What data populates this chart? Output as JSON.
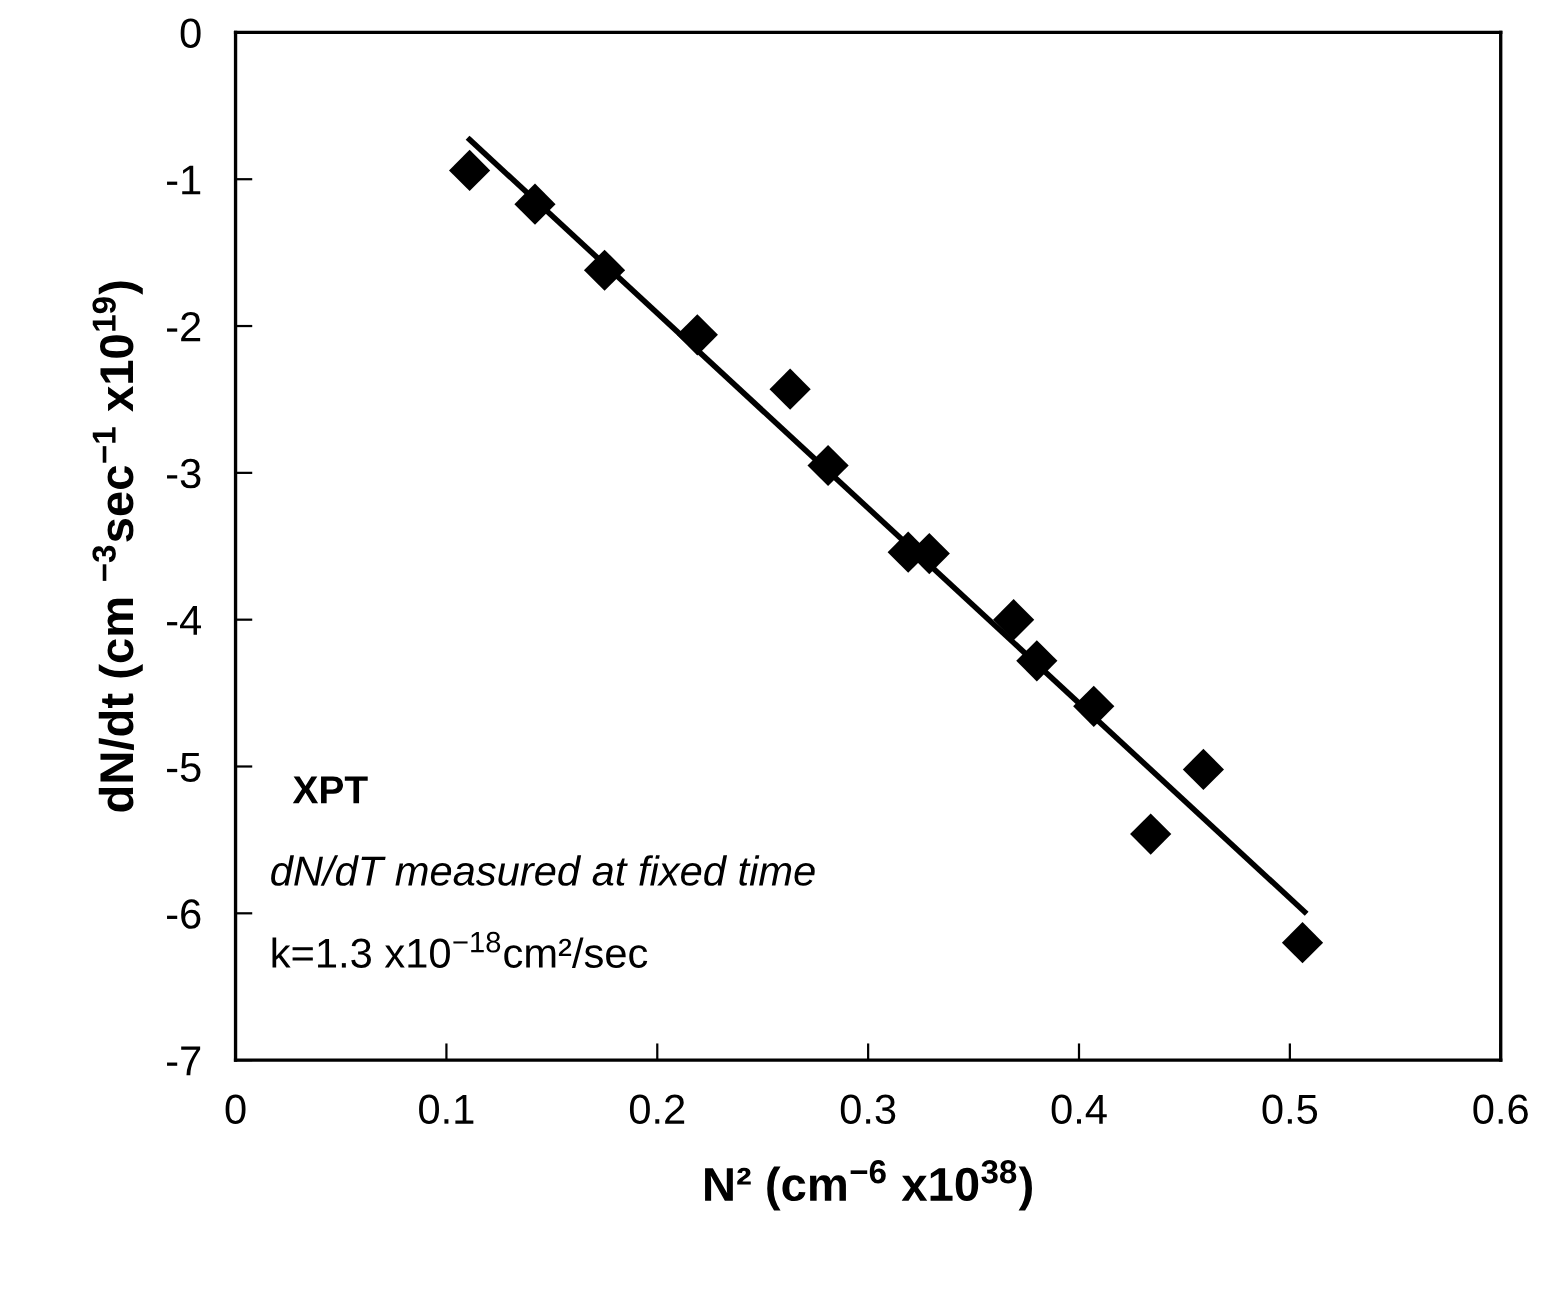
{
  "chart_data": {
    "type": "scatter",
    "xlabel": "N² (cm$^{−6}$ x10$^{38}$)",
    "ylabel": "dN/dt (cm $^{−3}$sec$^{−1}$ x10$^{19}$)",
    "xlim": [
      0,
      0.6
    ],
    "xticks": [
      0,
      0.1,
      0.2,
      0.3,
      0.4,
      0.5,
      0.6
    ],
    "ylim": [
      -7,
      0
    ],
    "yticks": [
      -7,
      -6,
      -5,
      -4,
      -3,
      -2,
      -1,
      0
    ],
    "grid": false,
    "legend": false,
    "series": [
      {
        "color": "#000000",
        "marker": "diamond",
        "x": [
          0.111,
          0.142,
          0.175,
          0.219,
          0.263,
          0.281,
          0.319,
          0.329,
          0.369,
          0.38,
          0.407,
          0.434,
          0.459,
          0.506
        ],
        "values": [
          -0.94,
          -1.17,
          -1.62,
          -2.06,
          -2.43,
          -2.95,
          -3.54,
          -3.55,
          -4.0,
          -4.28,
          -4.59,
          -5.46,
          -5.02,
          -6.2
        ]
      },
      {
        "type": "line",
        "color": "#000000",
        "marker": "none",
        "line_style": "solid",
        "x": [
          0.111,
          0.507
        ],
        "values": [
          -0.73,
          -5.99
        ]
      }
    ],
    "annotations": [
      "XPT",
      "dN/dT measured at fixed time",
      "k=1.3 x10$^{−18}$cm²/sec"
    ]
  }
}
